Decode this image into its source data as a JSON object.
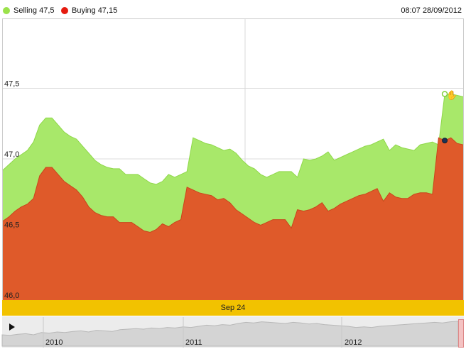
{
  "legend": {
    "selling_label": "Selling 47,5",
    "buying_label": "Buying 47,15",
    "selling_color": "#9be24b",
    "buying_color": "#e51b0f"
  },
  "timestamp": "08:07 28/09/2012",
  "date_label": "Sep 24",
  "navigator": {
    "years": [
      "2010",
      "2011",
      "2012"
    ],
    "play_icon": "play-icon"
  },
  "colors": {
    "selling_area": "#a8e86a",
    "buying_area": "#df5a2a",
    "date_bar": "#f2c200"
  },
  "chart_data": {
    "type": "area",
    "ylim": [
      46.0,
      48.0
    ],
    "y_ticks": [
      "46,0",
      "46,5",
      "47,0",
      "47,5"
    ],
    "y_tick_values": [
      46.0,
      46.5,
      47.0,
      47.5
    ],
    "grid": true,
    "legend_position": "top-left",
    "series": [
      {
        "name": "Selling",
        "values": [
          46.92,
          46.96,
          47.0,
          47.03,
          47.06,
          47.12,
          47.24,
          47.29,
          47.29,
          47.24,
          47.19,
          47.16,
          47.14,
          47.09,
          47.04,
          46.99,
          46.96,
          46.94,
          46.93,
          46.93,
          46.89,
          46.89,
          46.89,
          46.86,
          46.83,
          46.82,
          46.84,
          46.89,
          46.87,
          46.89,
          46.91,
          47.15,
          47.13,
          47.11,
          47.1,
          47.08,
          47.06,
          47.07,
          47.04,
          46.99,
          46.95,
          46.93,
          46.89,
          46.87,
          46.89,
          46.91,
          46.91,
          46.91,
          46.87,
          47.0,
          46.99,
          47.0,
          47.02,
          47.05,
          46.99,
          47.01,
          47.03,
          47.05,
          47.07,
          47.09,
          47.1,
          47.12,
          47.14,
          47.06,
          47.1,
          47.08,
          47.07,
          47.06,
          47.1,
          47.11,
          47.12,
          47.1,
          47.46,
          47.46,
          47.45,
          47.44
        ]
      },
      {
        "name": "Buying",
        "values": [
          46.56,
          46.59,
          46.63,
          46.66,
          46.68,
          46.72,
          46.88,
          46.94,
          46.94,
          46.89,
          46.84,
          46.81,
          46.78,
          46.73,
          46.66,
          46.62,
          46.6,
          46.59,
          46.59,
          46.55,
          46.55,
          46.55,
          46.52,
          46.49,
          46.48,
          46.5,
          46.54,
          46.52,
          46.55,
          46.57,
          46.8,
          46.78,
          46.76,
          46.75,
          46.74,
          46.71,
          46.72,
          46.69,
          46.64,
          46.61,
          46.58,
          46.55,
          46.53,
          46.55,
          46.57,
          46.57,
          46.57,
          46.51,
          46.64,
          46.63,
          46.64,
          46.66,
          46.69,
          46.63,
          46.65,
          46.68,
          46.7,
          46.72,
          46.74,
          46.75,
          46.77,
          46.79,
          46.7,
          46.76,
          46.73,
          46.72,
          46.72,
          46.75,
          46.76,
          46.76,
          46.75,
          47.15,
          47.13,
          47.15,
          47.11,
          47.1
        ]
      }
    ]
  }
}
